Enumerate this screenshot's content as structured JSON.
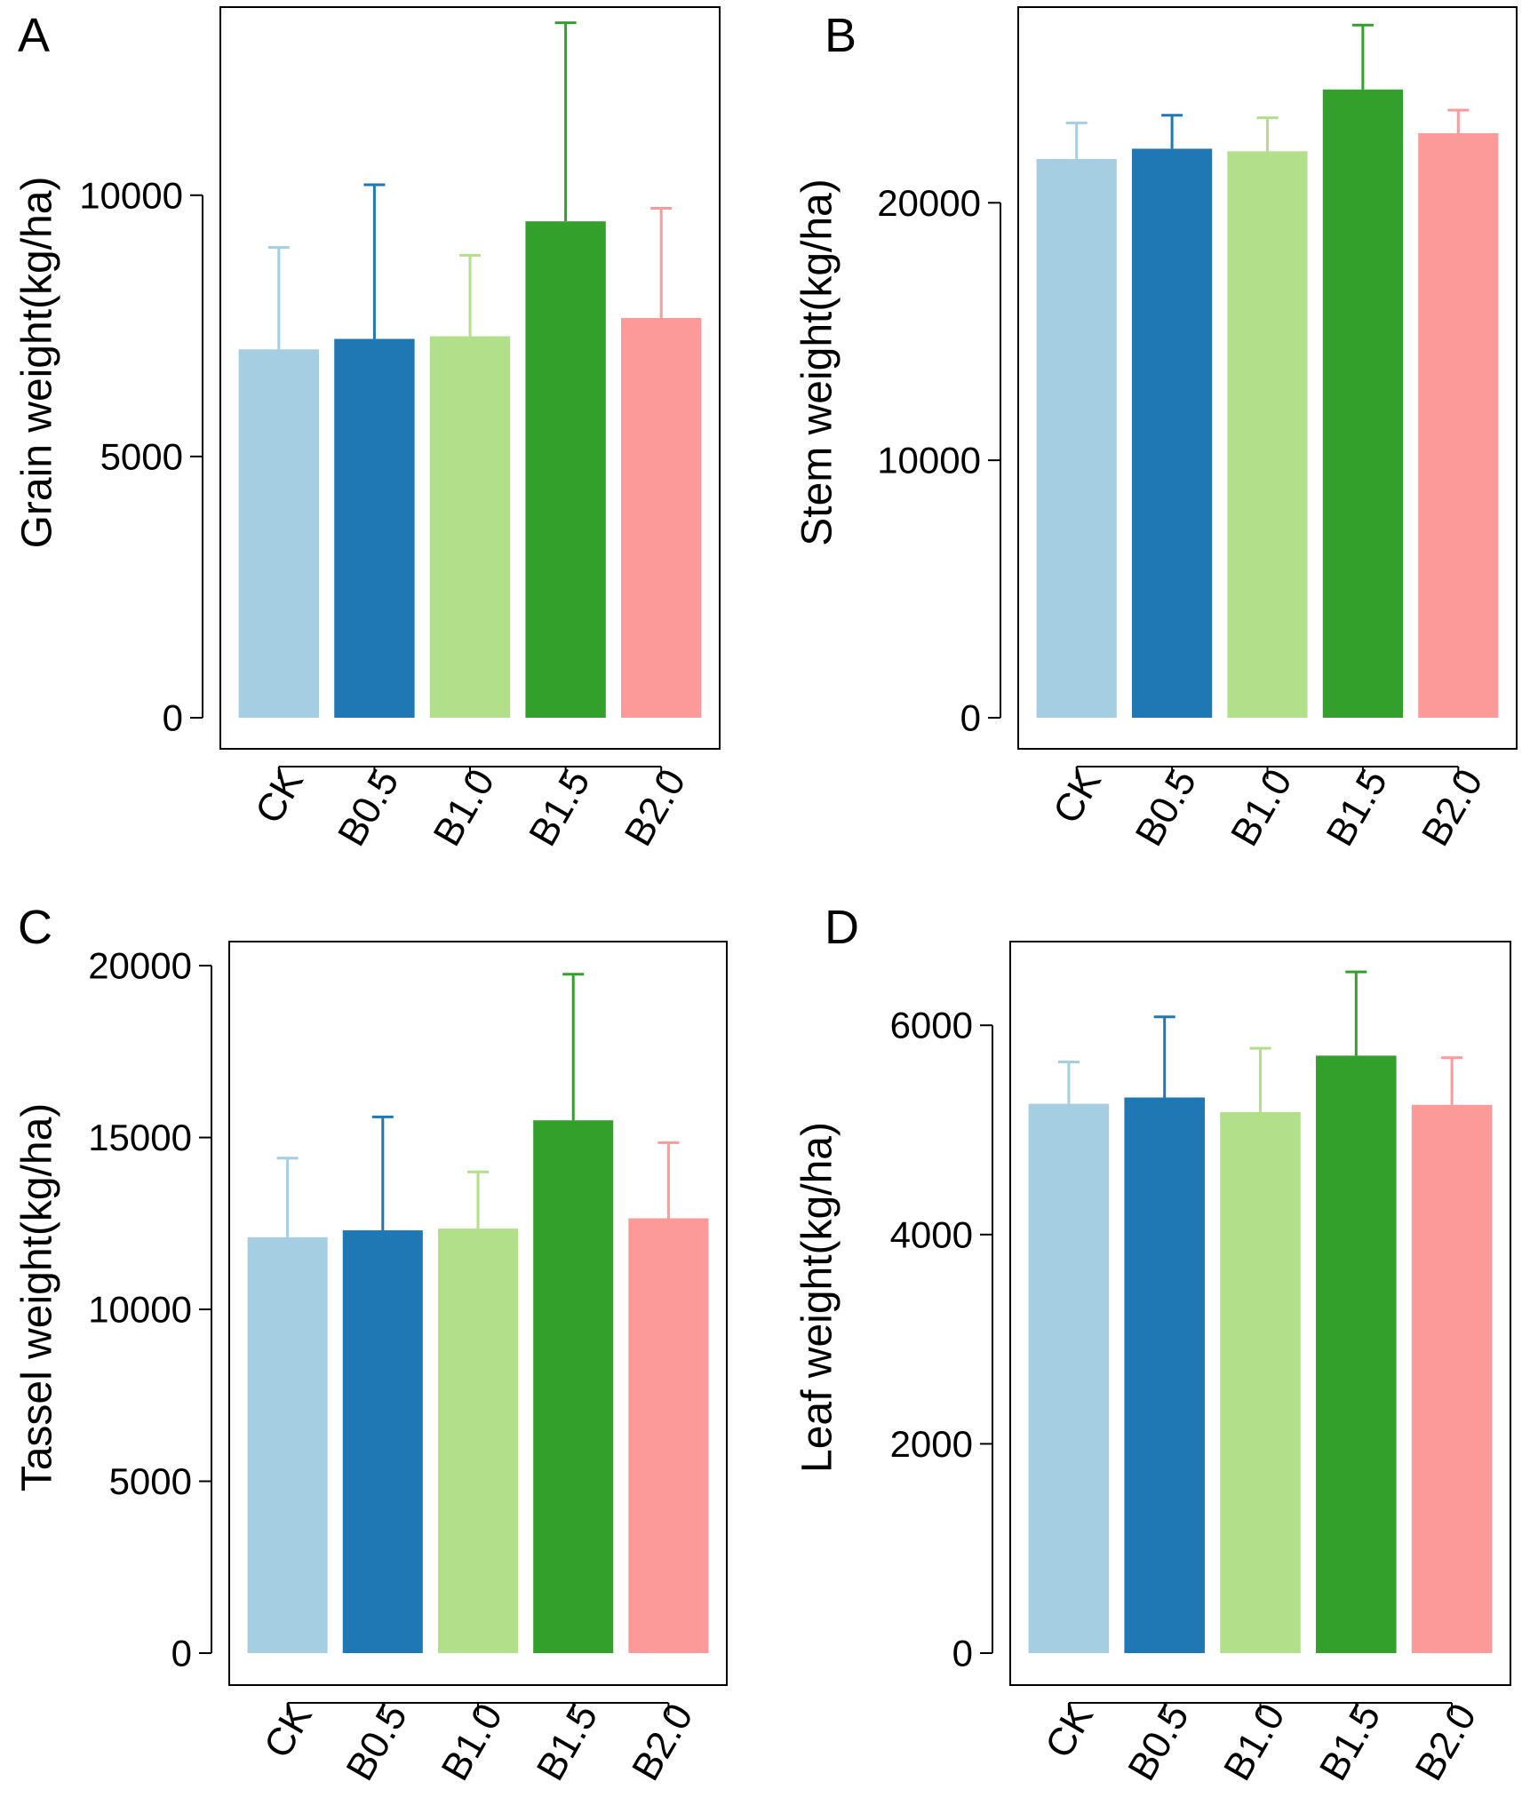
{
  "chart_data": [
    {
      "type": "bar",
      "panel": "A",
      "ylabel": "Grain weight(kg/ha)",
      "xlabel": "",
      "categories": [
        "CK",
        "B0.5",
        "B1.0",
        "B1.5",
        "B2.0"
      ],
      "values": [
        7050,
        7250,
        7300,
        9500,
        7650
      ],
      "errors": [
        1950,
        2950,
        1550,
        3800,
        2100
      ],
      "colors": [
        "#a6cee3",
        "#1f78b4",
        "#b2df8a",
        "#33a02c",
        "#fb9a99"
      ],
      "ylim": [
        0,
        13600
      ],
      "yticks": [
        0,
        5000,
        10000
      ],
      "ytick_labels": [
        "0",
        "5000",
        "10000"
      ]
    },
    {
      "type": "bar",
      "panel": "B",
      "ylabel": "Stem weight(kg/ha)",
      "xlabel": "",
      "categories": [
        "CK",
        "B0.5",
        "B1.0",
        "B1.5",
        "B2.0"
      ],
      "values": [
        21700,
        22100,
        22000,
        24400,
        22700
      ],
      "errors": [
        1400,
        1300,
        1300,
        2500,
        900
      ],
      "colors": [
        "#a6cee3",
        "#1f78b4",
        "#b2df8a",
        "#33a02c",
        "#fb9a99"
      ],
      "ylim": [
        0,
        27600
      ],
      "yticks": [
        0,
        10000,
        20000
      ],
      "ytick_labels": [
        "0",
        "10000",
        "20000"
      ]
    },
    {
      "type": "bar",
      "panel": "C",
      "ylabel": "Tassel weight(kg/ha)",
      "xlabel": "",
      "categories": [
        "CK",
        "B0.5",
        "B1.0",
        "B1.5",
        "B2.0"
      ],
      "values": [
        12100,
        12300,
        12350,
        15500,
        12650
      ],
      "errors": [
        2300,
        3300,
        1650,
        4250,
        2200
      ],
      "colors": [
        "#a6cee3",
        "#1f78b4",
        "#b2df8a",
        "#33a02c",
        "#fb9a99"
      ],
      "ylim": [
        0,
        20700
      ],
      "yticks": [
        0,
        5000,
        10000,
        15000,
        20000
      ],
      "ytick_labels": [
        "0",
        "5000",
        "10000",
        "15000",
        "20000"
      ]
    },
    {
      "type": "bar",
      "panel": "D",
      "ylabel": "Leaf weight(kg/ha)",
      "xlabel": "",
      "categories": [
        "CK",
        "B0.5",
        "B1.0",
        "B1.5",
        "B2.0"
      ],
      "values": [
        5250,
        5310,
        5170,
        5710,
        5240
      ],
      "errors": [
        400,
        770,
        610,
        800,
        450
      ],
      "colors": [
        "#a6cee3",
        "#1f78b4",
        "#b2df8a",
        "#33a02c",
        "#fb9a99"
      ],
      "ylim": [
        0,
        6800
      ],
      "yticks": [
        0,
        2000,
        4000,
        6000
      ],
      "ytick_labels": [
        "0",
        "2000",
        "4000",
        "6000"
      ]
    }
  ]
}
